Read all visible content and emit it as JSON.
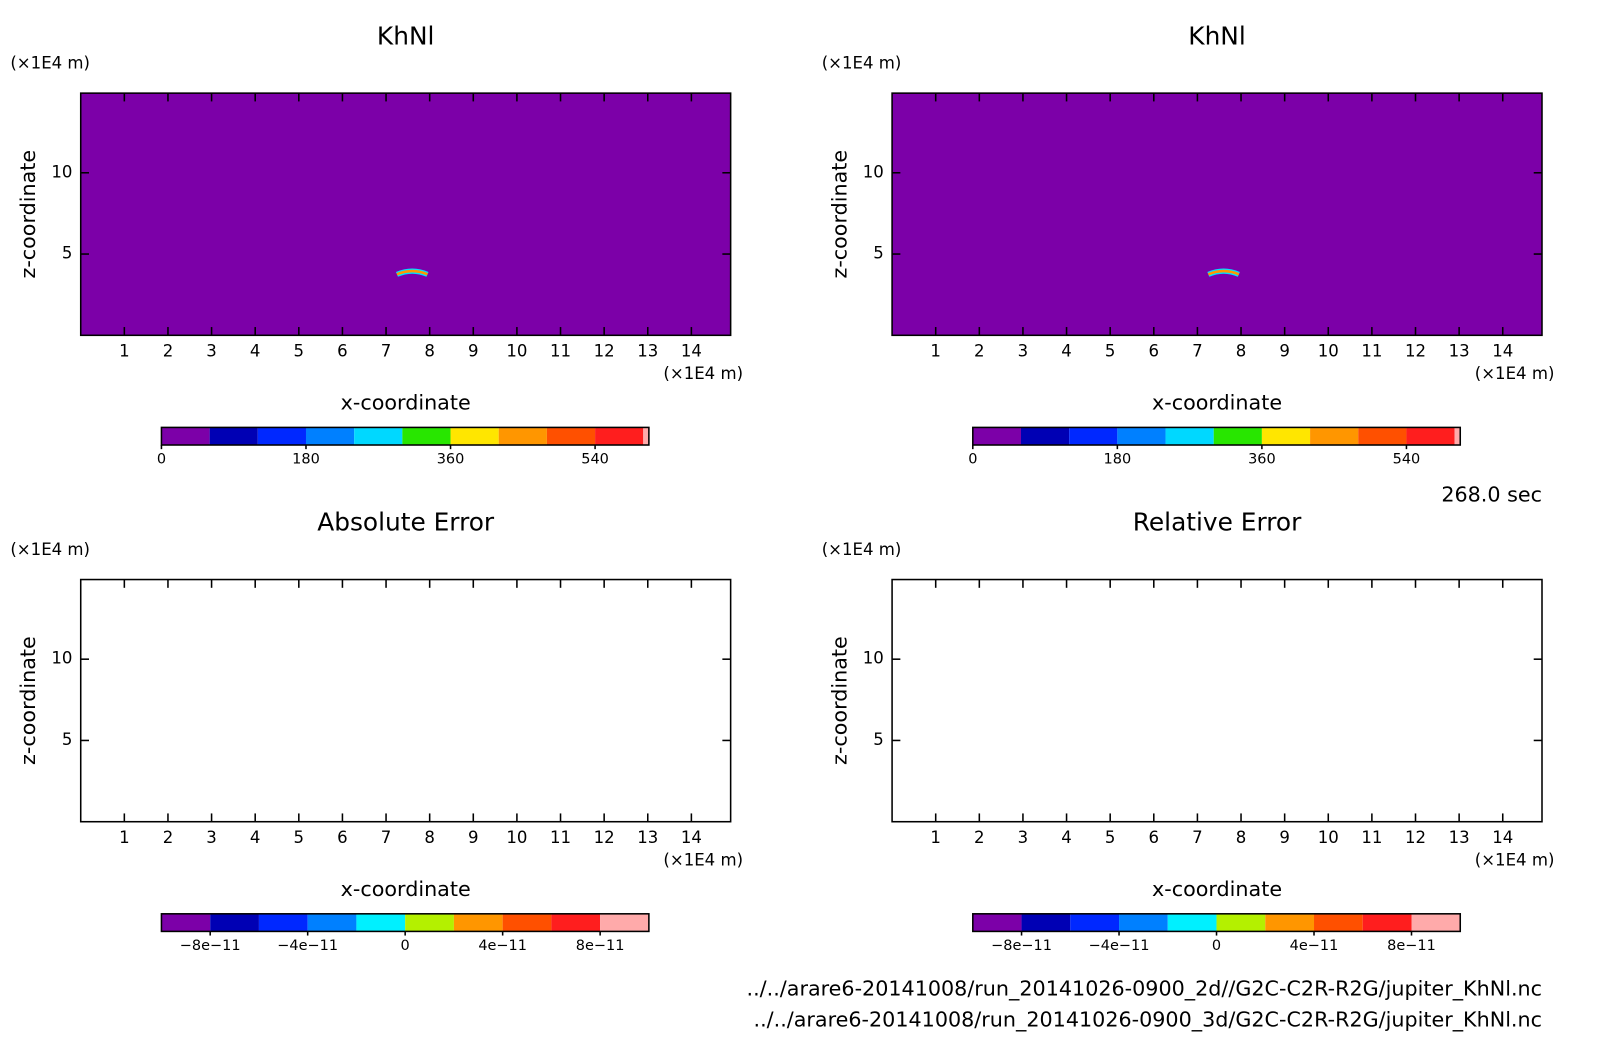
{
  "chart_data": [
    {
      "type": "contour",
      "title": "KhNl",
      "xlabel": "x-coordinate",
      "ylabel": "z-coordinate",
      "xunit": "(×1E4 m)",
      "yunit": "(×1E4 m)",
      "xlim": [
        0,
        14.9
      ],
      "ylim": [
        0,
        14.9
      ],
      "xticks": [
        1,
        2,
        3,
        4,
        5,
        6,
        7,
        8,
        9,
        10,
        11,
        12,
        13,
        14
      ],
      "yticks": [
        5,
        10
      ],
      "field_color": "#7c00a8",
      "colorbar": {
        "levels": [
          0,
          60,
          120,
          180,
          240,
          300,
          360,
          420,
          480,
          540,
          600,
          607
        ],
        "colors": [
          "#7c00a8",
          "#0000b4",
          "#0028ff",
          "#0080ff",
          "#00d8ff",
          "#28e600",
          "#ffe600",
          "#ff9600",
          "#ff5000",
          "#ff1e1e",
          "#ffaaaa"
        ],
        "ticks": [
          0,
          180,
          360,
          540
        ]
      }
    },
    {
      "type": "contour",
      "title": "KhNl",
      "xlabel": "x-coordinate",
      "ylabel": "z-coordinate",
      "xunit": "(×1E4 m)",
      "yunit": "(×1E4 m)",
      "xlim": [
        0,
        14.9
      ],
      "ylim": [
        0,
        14.9
      ],
      "xticks": [
        1,
        2,
        3,
        4,
        5,
        6,
        7,
        8,
        9,
        10,
        11,
        12,
        13,
        14
      ],
      "yticks": [
        5,
        10
      ],
      "field_color": "#7c00a8",
      "colorbar": {
        "levels": [
          0,
          60,
          120,
          180,
          240,
          300,
          360,
          420,
          480,
          540,
          600,
          607
        ],
        "colors": [
          "#7c00a8",
          "#0000b4",
          "#0028ff",
          "#0080ff",
          "#00d8ff",
          "#28e600",
          "#ffe600",
          "#ff9600",
          "#ff5000",
          "#ff1e1e",
          "#ffaaaa"
        ],
        "ticks": [
          0,
          180,
          360,
          540
        ]
      }
    },
    {
      "type": "contour",
      "title": "Absolute Error",
      "xlabel": "x-coordinate",
      "ylabel": "z-coordinate",
      "xunit": "(×1E4 m)",
      "yunit": "(×1E4 m)",
      "xlim": [
        0,
        14.9
      ],
      "ylim": [
        0,
        14.9
      ],
      "xticks": [
        1,
        2,
        3,
        4,
        5,
        6,
        7,
        8,
        9,
        10,
        11,
        12,
        13,
        14
      ],
      "yticks": [
        5,
        10
      ],
      "colorbar": {
        "levels": [
          -1e-10,
          -8e-11,
          -6e-11,
          -4e-11,
          -2e-11,
          0,
          2e-11,
          4e-11,
          6e-11,
          8e-11,
          1e-10
        ],
        "colors": [
          "#7c00a8",
          "#0000b4",
          "#0028ff",
          "#0080ff",
          "#00f0ff",
          "#b4f000",
          "#ff9600",
          "#ff5000",
          "#ff1e1e",
          "#ffaaaa"
        ],
        "ticks": [
          {
            "value": -8e-11,
            "label": "−8e−11"
          },
          {
            "value": -4e-11,
            "label": "−4e−11"
          },
          0,
          {
            "value": 4e-11,
            "label": "4e−11"
          },
          {
            "value": 8e-11,
            "label": "8e−11"
          }
        ]
      }
    },
    {
      "type": "contour",
      "title": "Relative Error",
      "xlabel": "x-coordinate",
      "ylabel": "z-coordinate",
      "xunit": "(×1E4 m)",
      "yunit": "(×1E4 m)",
      "xlim": [
        0,
        14.9
      ],
      "ylim": [
        0,
        14.9
      ],
      "xticks": [
        1,
        2,
        3,
        4,
        5,
        6,
        7,
        8,
        9,
        10,
        11,
        12,
        13,
        14
      ],
      "yticks": [
        5,
        10
      ],
      "colorbar": {
        "levels": [
          -1e-10,
          -8e-11,
          -6e-11,
          -4e-11,
          -2e-11,
          0,
          2e-11,
          4e-11,
          6e-11,
          8e-11,
          1e-10
        ],
        "colors": [
          "#7c00a8",
          "#0000b4",
          "#0028ff",
          "#0080ff",
          "#00f0ff",
          "#b4f000",
          "#ff9600",
          "#ff5000",
          "#ff1e1e",
          "#ffaaaa"
        ],
        "ticks": [
          {
            "value": -8e-11,
            "label": "−8e−11"
          },
          {
            "value": -4e-11,
            "label": "−4e−11"
          },
          0,
          {
            "value": 4e-11,
            "label": "4e−11"
          },
          {
            "value": 8e-11,
            "label": "8e−11"
          }
        ]
      }
    }
  ],
  "time_label": "268.0 sec",
  "files": [
    "../../arare6-20141008/run_20141026-0900_2d//G2C-C2R-R2G/jupiter_KhNl.nc",
    "../../arare6-20141008/run_20141026-0900_3d/G2C-C2R-R2G/jupiter_KhNl.nc"
  ]
}
